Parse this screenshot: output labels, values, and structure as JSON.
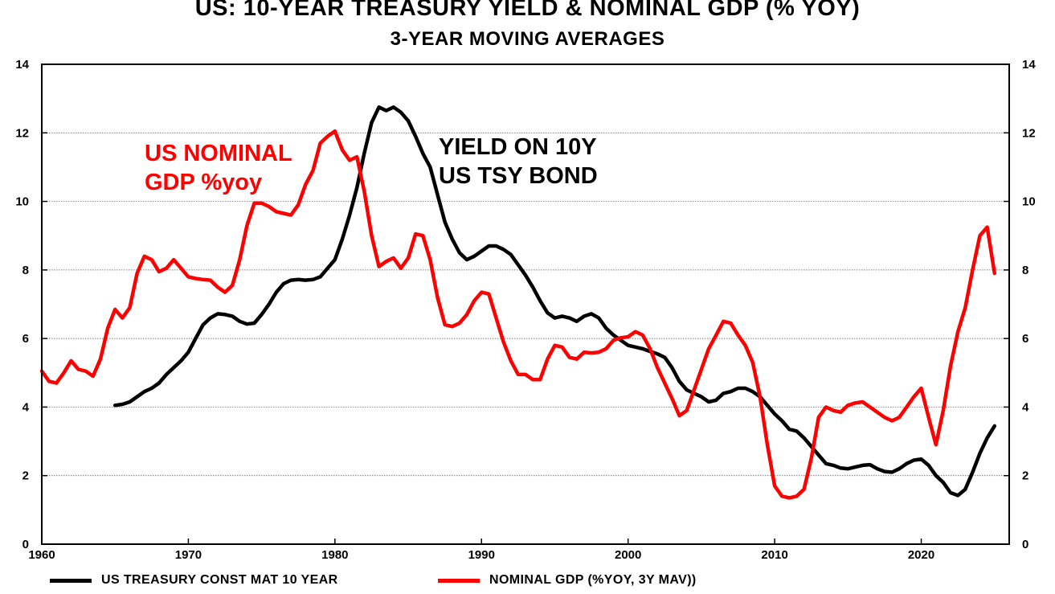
{
  "chart_data": {
    "type": "line",
    "title": "US: 10-YEAR TREASURY YIELD & NOMINAL GDP (% YOY)",
    "subtitle": "3-YEAR MOVING AVERAGES",
    "xlabel": "",
    "ylabel": "",
    "xlim": [
      1960,
      2026
    ],
    "ylim": [
      0,
      14
    ],
    "x_ticks": [
      1960,
      1970,
      1980,
      1990,
      2000,
      2010,
      2020
    ],
    "y_ticks": [
      0,
      2,
      4,
      6,
      8,
      10,
      12,
      14
    ],
    "grid": "horizontal",
    "legend_position": "bottom",
    "annotations": [
      {
        "lines": [
          "US NOMINAL",
          "GDP %yoy"
        ],
        "color": "#ff0000"
      },
      {
        "lines": [
          "YIELD ON 10Y",
          "US TSY BOND"
        ],
        "color": "#000000"
      }
    ],
    "series": [
      {
        "name": "US TREASURY CONST MAT 10 YEAR",
        "color": "#000000",
        "points": [
          [
            1965.0,
            4.05
          ],
          [
            1965.5,
            4.08
          ],
          [
            1966.0,
            4.15
          ],
          [
            1966.5,
            4.3
          ],
          [
            1967.0,
            4.45
          ],
          [
            1967.5,
            4.55
          ],
          [
            1968.0,
            4.7
          ],
          [
            1968.5,
            4.95
          ],
          [
            1969.0,
            5.15
          ],
          [
            1969.5,
            5.35
          ],
          [
            1970.0,
            5.6
          ],
          [
            1970.5,
            6.0
          ],
          [
            1971.0,
            6.4
          ],
          [
            1971.5,
            6.6
          ],
          [
            1972.0,
            6.72
          ],
          [
            1972.5,
            6.7
          ],
          [
            1973.0,
            6.65
          ],
          [
            1973.5,
            6.5
          ],
          [
            1974.0,
            6.42
          ],
          [
            1974.5,
            6.45
          ],
          [
            1975.0,
            6.7
          ],
          [
            1975.5,
            7.0
          ],
          [
            1976.0,
            7.35
          ],
          [
            1976.5,
            7.6
          ],
          [
            1977.0,
            7.7
          ],
          [
            1977.5,
            7.72
          ],
          [
            1978.0,
            7.7
          ],
          [
            1978.5,
            7.72
          ],
          [
            1979.0,
            7.8
          ],
          [
            1979.5,
            8.05
          ],
          [
            1980.0,
            8.3
          ],
          [
            1980.5,
            8.9
          ],
          [
            1981.0,
            9.6
          ],
          [
            1981.5,
            10.4
          ],
          [
            1982.0,
            11.4
          ],
          [
            1982.5,
            12.3
          ],
          [
            1983.0,
            12.75
          ],
          [
            1983.5,
            12.65
          ],
          [
            1984.0,
            12.75
          ],
          [
            1984.5,
            12.6
          ],
          [
            1985.0,
            12.35
          ],
          [
            1985.5,
            11.9
          ],
          [
            1986.0,
            11.4
          ],
          [
            1986.5,
            11.0
          ],
          [
            1987.0,
            10.2
          ],
          [
            1987.5,
            9.4
          ],
          [
            1988.0,
            8.9
          ],
          [
            1988.5,
            8.5
          ],
          [
            1989.0,
            8.3
          ],
          [
            1989.5,
            8.4
          ],
          [
            1990.0,
            8.55
          ],
          [
            1990.5,
            8.7
          ],
          [
            1991.0,
            8.7
          ],
          [
            1991.5,
            8.6
          ],
          [
            1992.0,
            8.45
          ],
          [
            1992.5,
            8.15
          ],
          [
            1993.0,
            7.85
          ],
          [
            1993.5,
            7.5
          ],
          [
            1994.0,
            7.1
          ],
          [
            1994.5,
            6.75
          ],
          [
            1995.0,
            6.6
          ],
          [
            1995.5,
            6.65
          ],
          [
            1996.0,
            6.6
          ],
          [
            1996.5,
            6.5
          ],
          [
            1997.0,
            6.65
          ],
          [
            1997.5,
            6.72
          ],
          [
            1998.0,
            6.6
          ],
          [
            1998.5,
            6.3
          ],
          [
            1999.0,
            6.1
          ],
          [
            1999.5,
            5.95
          ],
          [
            2000.0,
            5.8
          ],
          [
            2000.5,
            5.75
          ],
          [
            2001.0,
            5.7
          ],
          [
            2001.5,
            5.62
          ],
          [
            2002.0,
            5.55
          ],
          [
            2002.5,
            5.45
          ],
          [
            2003.0,
            5.15
          ],
          [
            2003.5,
            4.75
          ],
          [
            2004.0,
            4.5
          ],
          [
            2004.5,
            4.4
          ],
          [
            2005.0,
            4.3
          ],
          [
            2005.5,
            4.15
          ],
          [
            2006.0,
            4.2
          ],
          [
            2006.5,
            4.4
          ],
          [
            2007.0,
            4.45
          ],
          [
            2007.5,
            4.55
          ],
          [
            2008.0,
            4.55
          ],
          [
            2008.5,
            4.45
          ],
          [
            2009.0,
            4.3
          ],
          [
            2009.5,
            4.05
          ],
          [
            2010.0,
            3.8
          ],
          [
            2010.5,
            3.6
          ],
          [
            2011.0,
            3.35
          ],
          [
            2011.5,
            3.3
          ],
          [
            2012.0,
            3.1
          ],
          [
            2012.5,
            2.85
          ],
          [
            2013.0,
            2.6
          ],
          [
            2013.5,
            2.35
          ],
          [
            2014.0,
            2.3
          ],
          [
            2014.5,
            2.22
          ],
          [
            2015.0,
            2.2
          ],
          [
            2015.5,
            2.25
          ],
          [
            2016.0,
            2.3
          ],
          [
            2016.5,
            2.32
          ],
          [
            2017.0,
            2.2
          ],
          [
            2017.5,
            2.12
          ],
          [
            2018.0,
            2.1
          ],
          [
            2018.5,
            2.2
          ],
          [
            2019.0,
            2.35
          ],
          [
            2019.5,
            2.45
          ],
          [
            2020.0,
            2.48
          ],
          [
            2020.5,
            2.3
          ],
          [
            2021.0,
            2.0
          ],
          [
            2021.5,
            1.8
          ],
          [
            2022.0,
            1.5
          ],
          [
            2022.5,
            1.42
          ],
          [
            2023.0,
            1.6
          ],
          [
            2023.5,
            2.1
          ],
          [
            2024.0,
            2.65
          ],
          [
            2024.5,
            3.1
          ],
          [
            2025.0,
            3.45
          ]
        ]
      },
      {
        "name": "NOMINAL GDP (%YOY, 3Y MAV))",
        "color": "#ff0000",
        "points": [
          [
            1960.0,
            5.05
          ],
          [
            1960.5,
            4.75
          ],
          [
            1961.0,
            4.7
          ],
          [
            1961.5,
            5.0
          ],
          [
            1962.0,
            5.35
          ],
          [
            1962.5,
            5.1
          ],
          [
            1963.0,
            5.05
          ],
          [
            1963.5,
            4.9
          ],
          [
            1964.0,
            5.4
          ],
          [
            1964.5,
            6.3
          ],
          [
            1965.0,
            6.85
          ],
          [
            1965.5,
            6.6
          ],
          [
            1966.0,
            6.9
          ],
          [
            1966.5,
            7.9
          ],
          [
            1967.0,
            8.4
          ],
          [
            1967.5,
            8.3
          ],
          [
            1968.0,
            7.95
          ],
          [
            1968.5,
            8.05
          ],
          [
            1969.0,
            8.3
          ],
          [
            1969.5,
            8.05
          ],
          [
            1970.0,
            7.8
          ],
          [
            1970.5,
            7.75
          ],
          [
            1971.0,
            7.72
          ],
          [
            1971.5,
            7.7
          ],
          [
            1972.0,
            7.5
          ],
          [
            1972.5,
            7.35
          ],
          [
            1973.0,
            7.55
          ],
          [
            1973.5,
            8.3
          ],
          [
            1974.0,
            9.3
          ],
          [
            1974.5,
            9.95
          ],
          [
            1975.0,
            9.95
          ],
          [
            1975.5,
            9.85
          ],
          [
            1976.0,
            9.7
          ],
          [
            1976.5,
            9.65
          ],
          [
            1977.0,
            9.6
          ],
          [
            1977.5,
            9.9
          ],
          [
            1978.0,
            10.5
          ],
          [
            1978.5,
            10.9
          ],
          [
            1979.0,
            11.7
          ],
          [
            1979.5,
            11.9
          ],
          [
            1980.0,
            12.05
          ],
          [
            1980.5,
            11.5
          ],
          [
            1981.0,
            11.2
          ],
          [
            1981.5,
            11.3
          ],
          [
            1982.0,
            10.3
          ],
          [
            1982.5,
            9.0
          ],
          [
            1983.0,
            8.1
          ],
          [
            1983.5,
            8.25
          ],
          [
            1984.0,
            8.35
          ],
          [
            1984.5,
            8.05
          ],
          [
            1985.0,
            8.35
          ],
          [
            1985.5,
            9.05
          ],
          [
            1986.0,
            9.0
          ],
          [
            1986.5,
            8.3
          ],
          [
            1987.0,
            7.2
          ],
          [
            1987.5,
            6.4
          ],
          [
            1988.0,
            6.35
          ],
          [
            1988.5,
            6.45
          ],
          [
            1989.0,
            6.7
          ],
          [
            1989.5,
            7.1
          ],
          [
            1990.0,
            7.35
          ],
          [
            1990.5,
            7.3
          ],
          [
            1991.0,
            6.6
          ],
          [
            1991.5,
            5.9
          ],
          [
            1992.0,
            5.35
          ],
          [
            1992.5,
            4.95
          ],
          [
            1993.0,
            4.95
          ],
          [
            1993.5,
            4.8
          ],
          [
            1994.0,
            4.8
          ],
          [
            1994.5,
            5.4
          ],
          [
            1995.0,
            5.8
          ],
          [
            1995.5,
            5.75
          ],
          [
            1996.0,
            5.45
          ],
          [
            1996.5,
            5.4
          ],
          [
            1997.0,
            5.6
          ],
          [
            1997.5,
            5.58
          ],
          [
            1998.0,
            5.6
          ],
          [
            1998.5,
            5.7
          ],
          [
            1999.0,
            5.95
          ],
          [
            1999.5,
            6.02
          ],
          [
            2000.0,
            6.05
          ],
          [
            2000.5,
            6.2
          ],
          [
            2001.0,
            6.1
          ],
          [
            2001.5,
            5.7
          ],
          [
            2002.0,
            5.15
          ],
          [
            2002.5,
            4.7
          ],
          [
            2003.0,
            4.25
          ],
          [
            2003.5,
            3.75
          ],
          [
            2004.0,
            3.9
          ],
          [
            2004.5,
            4.5
          ],
          [
            2005.0,
            5.1
          ],
          [
            2005.5,
            5.7
          ],
          [
            2006.0,
            6.1
          ],
          [
            2006.5,
            6.5
          ],
          [
            2007.0,
            6.45
          ],
          [
            2007.5,
            6.1
          ],
          [
            2008.0,
            5.8
          ],
          [
            2008.5,
            5.3
          ],
          [
            2009.0,
            4.3
          ],
          [
            2009.5,
            2.9
          ],
          [
            2010.0,
            1.7
          ],
          [
            2010.5,
            1.4
          ],
          [
            2011.0,
            1.35
          ],
          [
            2011.5,
            1.4
          ],
          [
            2012.0,
            1.6
          ],
          [
            2012.5,
            2.5
          ],
          [
            2013.0,
            3.7
          ],
          [
            2013.5,
            4.0
          ],
          [
            2014.0,
            3.9
          ],
          [
            2014.5,
            3.85
          ],
          [
            2015.0,
            4.05
          ],
          [
            2015.5,
            4.12
          ],
          [
            2016.0,
            4.15
          ],
          [
            2016.5,
            4.0
          ],
          [
            2017.0,
            3.85
          ],
          [
            2017.5,
            3.7
          ],
          [
            2018.0,
            3.6
          ],
          [
            2018.5,
            3.7
          ],
          [
            2019.0,
            4.0
          ],
          [
            2019.5,
            4.3
          ],
          [
            2020.0,
            4.55
          ],
          [
            2020.5,
            3.7
          ],
          [
            2021.0,
            2.9
          ],
          [
            2021.5,
            3.9
          ],
          [
            2022.0,
            5.2
          ],
          [
            2022.5,
            6.2
          ],
          [
            2023.0,
            6.9
          ],
          [
            2023.5,
            8.0
          ],
          [
            2024.0,
            9.0
          ],
          [
            2024.5,
            9.25
          ],
          [
            2025.0,
            7.9
          ]
        ]
      }
    ]
  }
}
